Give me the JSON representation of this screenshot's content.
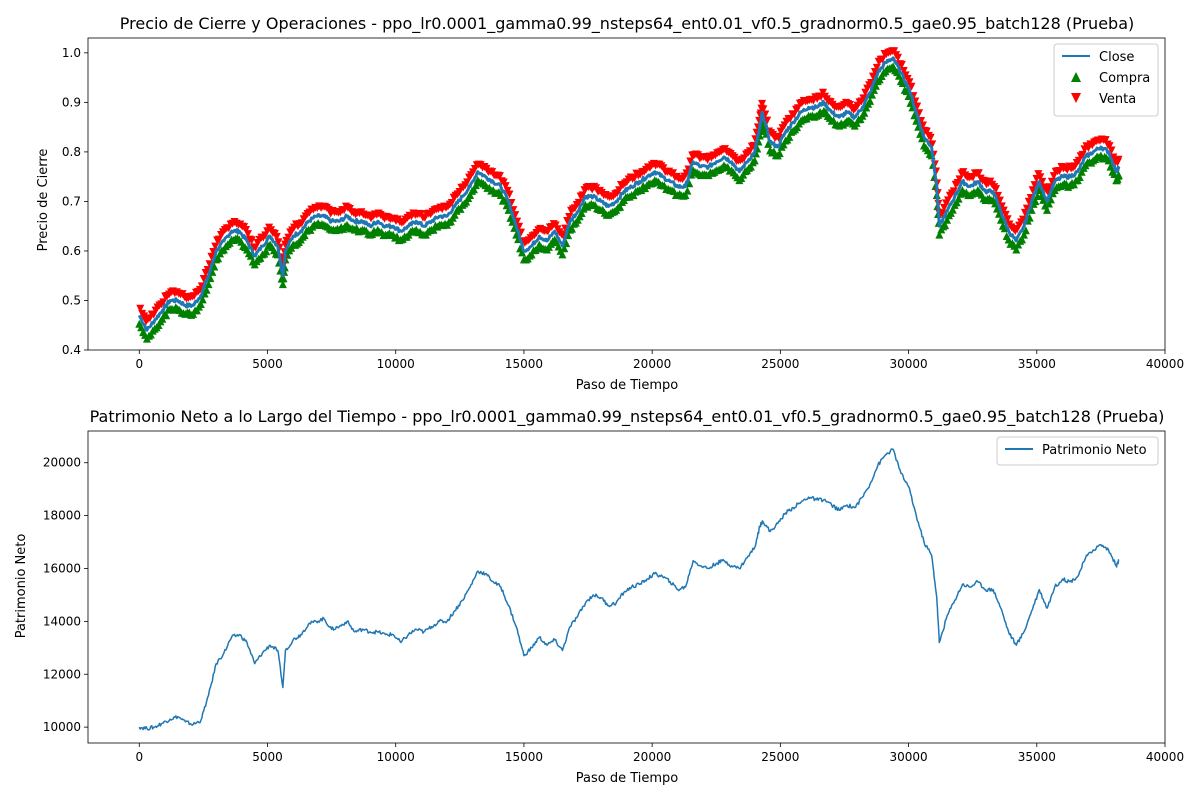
{
  "figure": {
    "background": "#ffffff"
  },
  "chart_data": [
    {
      "type": "line",
      "title": "Precio de Cierre y Operaciones - ppo_lr0.0001_gamma0.99_nsteps64_ent0.01_vf0.5_gradnorm0.5_gae0.95_batch128 (Prueba)",
      "xlabel": "Paso de Tiempo",
      "ylabel": "Precio de Cierre",
      "xlim": [
        -2000,
        40000
      ],
      "ylim": [
        0.4,
        1.03
      ],
      "xticks": [
        0,
        5000,
        10000,
        15000,
        20000,
        25000,
        30000,
        35000,
        40000
      ],
      "xtick_labels": [
        "0",
        "5000",
        "10000",
        "15000",
        "20000",
        "25000",
        "30000",
        "35000",
        "40000"
      ],
      "yticks": [
        0.4,
        0.5,
        0.6,
        0.7,
        0.8,
        0.9,
        1.0
      ],
      "ytick_labels": [
        "0.4",
        "0.5",
        "0.6",
        "0.7",
        "0.8",
        "0.9",
        "1.0"
      ],
      "grid": false,
      "legend_position": "top-right",
      "legend": [
        {
          "label": "Close",
          "kind": "line",
          "color": "#1f77b4"
        },
        {
          "label": "Compra",
          "kind": "marker-up",
          "color": "#008000"
        },
        {
          "label": "Venta",
          "kind": "marker-down",
          "color": "#ff0000"
        }
      ],
      "series": [
        {
          "name": "Close",
          "color": "#1f77b4",
          "x": [
            0,
            300,
            600,
            900,
            1200,
            1500,
            1800,
            2100,
            2400,
            2700,
            3000,
            3300,
            3600,
            3900,
            4200,
            4500,
            4800,
            5100,
            5400,
            5600,
            5700,
            6000,
            6300,
            6600,
            6900,
            7200,
            7500,
            7800,
            8100,
            8400,
            8700,
            9000,
            9300,
            9600,
            9900,
            10200,
            10500,
            10800,
            11100,
            11400,
            11700,
            12000,
            12300,
            12600,
            12900,
            13200,
            13500,
            13800,
            14100,
            14400,
            14700,
            15000,
            15300,
            15600,
            15900,
            16200,
            16500,
            16800,
            17100,
            17400,
            17700,
            18000,
            18300,
            18600,
            18900,
            19200,
            19500,
            19800,
            20100,
            20400,
            20700,
            21000,
            21300,
            21600,
            21900,
            22200,
            22500,
            22800,
            23100,
            23400,
            23700,
            24000,
            24200,
            24300,
            24600,
            24900,
            25200,
            25500,
            25800,
            26100,
            26400,
            26700,
            27000,
            27300,
            27600,
            27900,
            28200,
            28500,
            28800,
            29100,
            29400,
            29700,
            30000,
            30300,
            30600,
            30900,
            31100,
            31200,
            31500,
            31800,
            32100,
            32400,
            32700,
            33000,
            33300,
            33600,
            33900,
            34200,
            34500,
            34800,
            35100,
            35400,
            35700,
            36000,
            36300,
            36600,
            36900,
            37200,
            37500,
            37800,
            38100,
            38200
          ],
          "y": [
            0.47,
            0.44,
            0.46,
            0.48,
            0.5,
            0.5,
            0.49,
            0.49,
            0.51,
            0.55,
            0.6,
            0.62,
            0.64,
            0.64,
            0.62,
            0.59,
            0.61,
            0.63,
            0.61,
            0.55,
            0.6,
            0.63,
            0.64,
            0.66,
            0.67,
            0.67,
            0.66,
            0.66,
            0.67,
            0.66,
            0.66,
            0.65,
            0.66,
            0.65,
            0.65,
            0.64,
            0.65,
            0.66,
            0.65,
            0.66,
            0.67,
            0.67,
            0.69,
            0.71,
            0.73,
            0.76,
            0.75,
            0.74,
            0.73,
            0.7,
            0.65,
            0.6,
            0.61,
            0.63,
            0.62,
            0.64,
            0.61,
            0.66,
            0.68,
            0.71,
            0.71,
            0.7,
            0.69,
            0.7,
            0.72,
            0.73,
            0.74,
            0.75,
            0.76,
            0.75,
            0.74,
            0.73,
            0.73,
            0.78,
            0.77,
            0.77,
            0.78,
            0.79,
            0.78,
            0.76,
            0.78,
            0.8,
            0.85,
            0.88,
            0.82,
            0.81,
            0.84,
            0.86,
            0.88,
            0.89,
            0.89,
            0.9,
            0.88,
            0.87,
            0.88,
            0.87,
            0.89,
            0.92,
            0.96,
            0.98,
            0.99,
            0.96,
            0.93,
            0.88,
            0.83,
            0.81,
            0.73,
            0.65,
            0.68,
            0.71,
            0.74,
            0.73,
            0.74,
            0.72,
            0.72,
            0.68,
            0.64,
            0.62,
            0.65,
            0.7,
            0.74,
            0.7,
            0.74,
            0.75,
            0.75,
            0.76,
            0.79,
            0.8,
            0.81,
            0.8,
            0.76,
            0.77
          ]
        }
      ],
      "markers": [
        {
          "name": "Compra",
          "color": "#008000",
          "shape": "triangle-up",
          "offset": -0.017
        },
        {
          "name": "Venta",
          "color": "#ff0000",
          "shape": "triangle-down",
          "offset": 0.017
        }
      ]
    },
    {
      "type": "line",
      "title": "Patrimonio Neto a lo Largo del Tiempo - ppo_lr0.0001_gamma0.99_nsteps64_ent0.01_vf0.5_gradnorm0.5_gae0.95_batch128 (Prueba)",
      "xlabel": "Paso de Tiempo",
      "ylabel": "Patrimonio Neto",
      "xlim": [
        -2000,
        40000
      ],
      "ylim": [
        9400,
        21200
      ],
      "xticks": [
        0,
        5000,
        10000,
        15000,
        20000,
        25000,
        30000,
        35000,
        40000
      ],
      "xtick_labels": [
        "0",
        "5000",
        "10000",
        "15000",
        "20000",
        "25000",
        "30000",
        "35000",
        "40000"
      ],
      "yticks": [
        10000,
        12000,
        14000,
        16000,
        18000,
        20000
      ],
      "ytick_labels": [
        "10000",
        "12000",
        "14000",
        "16000",
        "18000",
        "20000"
      ],
      "grid": false,
      "legend_position": "top-right",
      "legend": [
        {
          "label": "Patrimonio Neto",
          "kind": "line",
          "color": "#1f77b4"
        }
      ],
      "series": [
        {
          "name": "Patrimonio Neto",
          "color": "#1f77b4",
          "x": [
            0,
            300,
            600,
            900,
            1200,
            1500,
            1800,
            2100,
            2400,
            2700,
            3000,
            3300,
            3600,
            3900,
            4200,
            4500,
            4800,
            5100,
            5400,
            5600,
            5700,
            6000,
            6300,
            6600,
            6900,
            7200,
            7500,
            7800,
            8100,
            8400,
            8700,
            9000,
            9300,
            9600,
            9900,
            10200,
            10500,
            10800,
            11100,
            11400,
            11700,
            12000,
            12300,
            12600,
            12900,
            13200,
            13500,
            13800,
            14100,
            14400,
            14700,
            15000,
            15300,
            15600,
            15900,
            16200,
            16500,
            16800,
            17100,
            17400,
            17700,
            18000,
            18300,
            18600,
            18900,
            19200,
            19500,
            19800,
            20100,
            20400,
            20700,
            21000,
            21300,
            21600,
            21900,
            22200,
            22500,
            22800,
            23100,
            23400,
            23700,
            24000,
            24200,
            24300,
            24600,
            24900,
            25200,
            25500,
            25800,
            26100,
            26400,
            26700,
            27000,
            27300,
            27600,
            27900,
            28200,
            28500,
            28800,
            29100,
            29400,
            29700,
            30000,
            30300,
            30600,
            30900,
            31100,
            31200,
            31500,
            31800,
            32100,
            32400,
            32700,
            33000,
            33300,
            33600,
            33900,
            34200,
            34500,
            34800,
            35100,
            35400,
            35700,
            36000,
            36300,
            36600,
            36900,
            37200,
            37500,
            37800,
            38100,
            38200
          ],
          "y": [
            10000,
            9950,
            10000,
            10150,
            10300,
            10400,
            10200,
            10100,
            10250,
            11200,
            12400,
            12800,
            13400,
            13500,
            13200,
            12400,
            12800,
            13100,
            12900,
            11500,
            12900,
            13300,
            13500,
            13900,
            14000,
            14100,
            13700,
            13800,
            14000,
            13600,
            13700,
            13600,
            13600,
            13500,
            13500,
            13200,
            13500,
            13700,
            13600,
            13800,
            14000,
            14000,
            14400,
            14800,
            15300,
            15900,
            15800,
            15500,
            15300,
            14600,
            13800,
            12700,
            13000,
            13400,
            13100,
            13300,
            12900,
            13800,
            14200,
            14700,
            15000,
            14900,
            14600,
            14700,
            15100,
            15300,
            15400,
            15600,
            15800,
            15700,
            15500,
            15200,
            15300,
            16300,
            16100,
            16000,
            16200,
            16300,
            16100,
            16000,
            16400,
            16800,
            17600,
            17800,
            17400,
            17700,
            18100,
            18300,
            18500,
            18700,
            18600,
            18600,
            18400,
            18200,
            18400,
            18300,
            18700,
            19200,
            19900,
            20300,
            20500,
            19600,
            19100,
            18000,
            17000,
            16500,
            14900,
            13200,
            14200,
            14800,
            15400,
            15300,
            15500,
            15200,
            15200,
            14500,
            13600,
            13100,
            13600,
            14400,
            15200,
            14500,
            15300,
            15600,
            15500,
            15700,
            16400,
            16700,
            16900,
            16700,
            16100,
            16300
          ]
        }
      ]
    }
  ]
}
